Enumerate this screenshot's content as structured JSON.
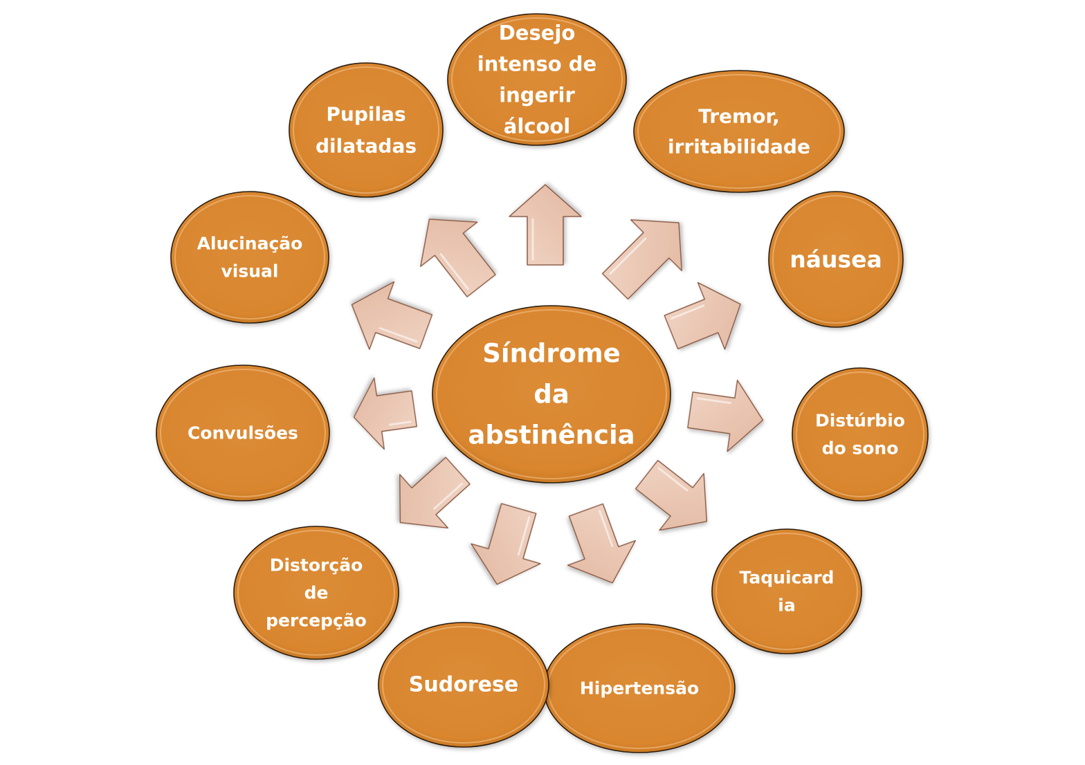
{
  "colors": {
    "node_fill": "#d9862f",
    "node_stroke": "#2a1a0a",
    "arrow_fill": "#e8c2ad",
    "arrow_stroke": "#8a5a44",
    "text": "#ffffff"
  },
  "center": {
    "lines": [
      "Síndrome",
      "da",
      "abstinência"
    ]
  },
  "nodes": [
    {
      "id": "desejo",
      "lines": [
        "Desejo",
        "intenso de",
        "ingerir",
        "álcool"
      ]
    },
    {
      "id": "tremor",
      "lines": [
        "Tremor,",
        "irritabilidade"
      ]
    },
    {
      "id": "nausea",
      "lines": [
        "náusea"
      ]
    },
    {
      "id": "disturbio-sono",
      "lines": [
        "Distúrbio",
        "do sono"
      ]
    },
    {
      "id": "taquicardia",
      "lines": [
        "Taquicard",
        "ia"
      ]
    },
    {
      "id": "hipertensao",
      "lines": [
        "Hipertensão"
      ]
    },
    {
      "id": "sudorese",
      "lines": [
        "Sudorese"
      ]
    },
    {
      "id": "distorcao-percepcao",
      "lines": [
        "Distorção",
        "de",
        "percepção"
      ]
    },
    {
      "id": "convulsoes",
      "lines": [
        "Convulsões"
      ]
    },
    {
      "id": "alucinacao-visual",
      "lines": [
        "Alucinação",
        "visual"
      ]
    },
    {
      "id": "pupilas-dilatadas",
      "lines": [
        "Pupilas",
        "dilatadas"
      ]
    }
  ]
}
